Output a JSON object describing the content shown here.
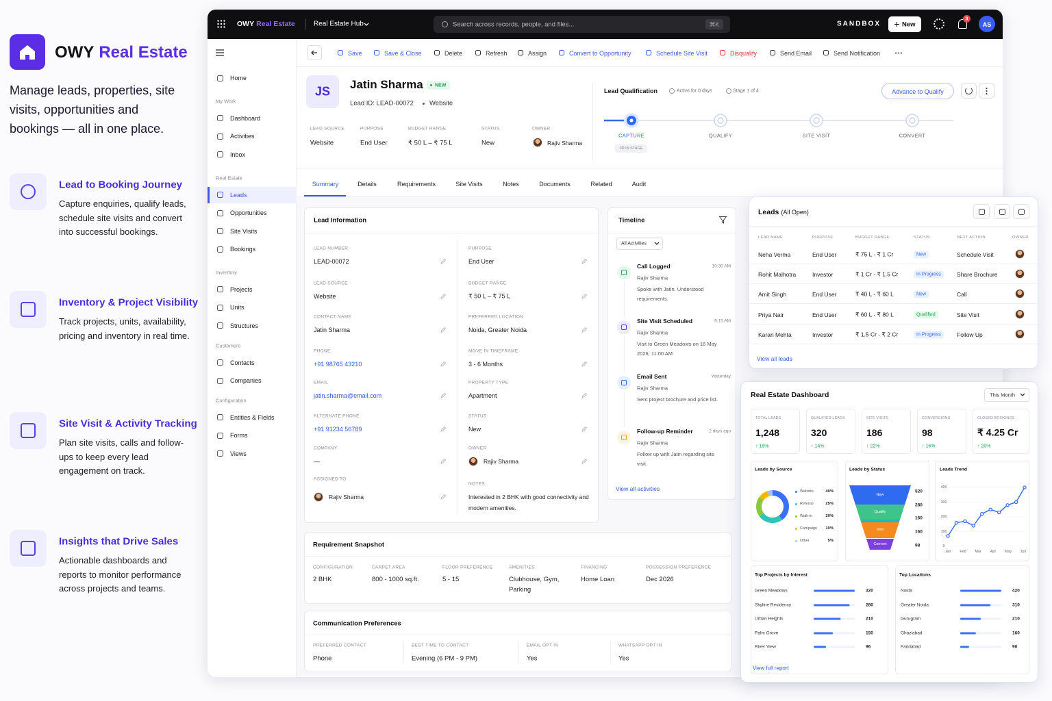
{
  "brand": {
    "name_1": "OWY",
    "name_2": "Real Estate",
    "tagline": "Manage leads, properties, site visits, opportunities and bookings — all in one place."
  },
  "features": [
    {
      "title": "Lead to Booking Journey",
      "text": "Capture enquiries, qualify leads, schedule site visits and convert into successful bookings."
    },
    {
      "title": "Inventory & Project Visibility",
      "text": "Track projects, units, availability, pricing and inventory in real time."
    },
    {
      "title": "Site Visit & Activity Tracking",
      "text": "Plan site visits, calls and follow-ups to keep every lead engagement on track."
    },
    {
      "title": "Insights that Drive Sales",
      "text": "Actionable dashboards and reports to monitor performance across projects and teams."
    }
  ],
  "topbar": {
    "brand_1": "OWY",
    "brand_2": "Real Estate",
    "hub": "Real Estate Hub",
    "search": "Search across records, people, and files...",
    "shortcut": "⌘K",
    "env": "SANDBOX",
    "new": "New",
    "notifications": 3,
    "avatar": "AS"
  },
  "nav": {
    "home": "Home",
    "groups": [
      {
        "label": "My Work",
        "items": [
          "Dashboard",
          "Activities",
          "Inbox"
        ]
      },
      {
        "label": "Real Estate",
        "items": [
          "Leads",
          "Opportunities",
          "Site Visits",
          "Bookings"
        ]
      },
      {
        "label": "Inventory",
        "items": [
          "Projects",
          "Units",
          "Structures"
        ]
      },
      {
        "label": "Customers",
        "items": [
          "Contacts",
          "Companies"
        ]
      },
      {
        "label": "Configuration",
        "items": [
          "Entities & Fields",
          "Forms",
          "Views"
        ]
      }
    ]
  },
  "toolbar": [
    "Save",
    "Save & Close",
    "Delete",
    "Refresh",
    "Assign",
    "Convert to Opportunity",
    "Schedule Site Visit",
    "Disqualify",
    "Send Email",
    "Send Notification"
  ],
  "record": {
    "initials": "JS",
    "name": "Jatin Sharma",
    "badge": "NEW",
    "lead_id": "Lead ID: LEAD-00072",
    "source": "Website",
    "fields": [
      {
        "label": "LEAD SOURCE",
        "value": "Website"
      },
      {
        "label": "PURPOSE",
        "value": "End User"
      },
      {
        "label": "BUDGET RANGE",
        "value": "₹ 50 L – ₹ 75 L"
      },
      {
        "label": "STATUS",
        "value": "New"
      },
      {
        "label": "OWNER",
        "value": "Rajiv Sharma"
      }
    ]
  },
  "qualification": {
    "title": "Lead Qualification",
    "active": "Active for 0 days",
    "stage": "Stage 1 of 4",
    "button": "Advance to Qualify",
    "steps": [
      "CAPTURE",
      "QUALIFY",
      "SITE VISIT",
      "CONVERT"
    ],
    "in_stage": "0D IN STAGE"
  },
  "tabs": [
    "Summary",
    "Details",
    "Requirements",
    "Site Visits",
    "Notes",
    "Documents",
    "Related",
    "Audit"
  ],
  "lead_info": {
    "title": "Lead Information",
    "left": [
      {
        "label": "LEAD NUMBER",
        "value": "LEAD-00072"
      },
      {
        "label": "LEAD SOURCE",
        "value": "Website"
      },
      {
        "label": "CONTACT NAME",
        "value": "Jatin Sharma"
      },
      {
        "label": "PHONE",
        "value": "+91 98765 43210"
      },
      {
        "label": "EMAIL",
        "value": "jatin.sharma@email.com"
      },
      {
        "label": "ALTERNATE PHONE",
        "value": "+91 91234 56789"
      },
      {
        "label": "COMPANY",
        "value": "—"
      },
      {
        "label": "ASSIGNED TO",
        "value": "Rajiv Sharma"
      }
    ],
    "right": [
      {
        "label": "PURPOSE",
        "value": "End User"
      },
      {
        "label": "BUDGET RANGE",
        "value": "₹ 50 L – ₹ 75 L"
      },
      {
        "label": "PREFERRED LOCATION",
        "value": "Noida, Greater Noida"
      },
      {
        "label": "MOVE IN TIMEFRAME",
        "value": "3 - 6 Months"
      },
      {
        "label": "PROPERTY TYPE",
        "value": "Apartment"
      },
      {
        "label": "STATUS",
        "value": "New"
      },
      {
        "label": "OWNER",
        "value": "Rajiv Sharma"
      },
      {
        "label": "NOTES",
        "value": "Interested in 2 BHK with good connectivity and modern amenities."
      }
    ]
  },
  "timeline": {
    "title": "Timeline",
    "filter": "All Activities",
    "items": [
      {
        "title": "Call Logged",
        "time": "10:30 AM",
        "who": "Rajiv Sharma",
        "text": "Spoke with Jatin. Understood requirements."
      },
      {
        "title": "Site Visit Scheduled",
        "time": "9:15 AM",
        "who": "Rajiv Sharma",
        "text": "Visit to Green Meadows on 16 May 2026, 11:00 AM"
      },
      {
        "title": "Email Sent",
        "time": "Yesterday",
        "who": "Rajiv Sharma",
        "text": "Sent project brochure and price list."
      },
      {
        "title": "Follow-up Reminder",
        "time": "2 days ago",
        "who": "Rajiv Sharma",
        "text": "Follow up with Jatin regarding site visit."
      }
    ],
    "link": "View all activities"
  },
  "requirement": {
    "title": "Requirement Snapshot",
    "fields": [
      {
        "label": "CONFIGURATION",
        "value": "2 BHK"
      },
      {
        "label": "CARPET AREA",
        "value": "800 - 1000 sq.ft."
      },
      {
        "label": "FLOOR PREFERENCE",
        "value": "5 - 15"
      },
      {
        "label": "AMENITIES",
        "value": "Clubhouse, Gym, Parking"
      },
      {
        "label": "FINANCING",
        "value": "Home Loan"
      },
      {
        "label": "POSSESSION PREFERENCE",
        "value": "Dec 2026"
      }
    ]
  },
  "communication": {
    "title": "Communication Preferences",
    "fields": [
      {
        "label": "PREFERRED CONTACT",
        "value": "Phone"
      },
      {
        "label": "BEST TIME TO CONTACT",
        "value": "Evening (6 PM - 9 PM)"
      },
      {
        "label": "EMAIL OPT IN",
        "value": "Yes"
      },
      {
        "label": "WHATSAPP OPT IN",
        "value": "Yes"
      }
    ]
  },
  "leads_panel": {
    "title": "Leads",
    "subtitle": "(All Open)",
    "columns": [
      "LEAD NAME",
      "PURPOSE",
      "BUDGET RANGE",
      "STATUS",
      "NEXT ACTION",
      "OWNER"
    ],
    "rows": [
      [
        "Neha Verma",
        "End User",
        "₹ 75 L - ₹ 1 Cr",
        "New",
        "Schedule Visit"
      ],
      [
        "Rohit Malhotra",
        "Investor",
        "₹ 1 Cr - ₹ 1.5 Cr",
        "In Progress",
        "Share Brochure"
      ],
      [
        "Amit Singh",
        "End User",
        "₹ 40 L - ₹ 60 L",
        "New",
        "Call"
      ],
      [
        "Priya Nair",
        "End User",
        "₹ 60 L - ₹ 80 L",
        "Qualified",
        "Site Visit"
      ],
      [
        "Karan Mehta",
        "Investor",
        "₹ 1.5 Cr - ₹ 2 Cr",
        "In Progress",
        "Follow Up"
      ]
    ],
    "link": "View all leads"
  },
  "dashboard": {
    "title": "Real Estate Dashboard",
    "period": "This Month",
    "kpis": [
      {
        "label": "TOTAL LEADS",
        "value": "1,248",
        "change": "↑ 18%"
      },
      {
        "label": "QUALIFIED LEADS",
        "value": "320",
        "change": "↑ 14%"
      },
      {
        "label": "SITE VISITS",
        "value": "186",
        "change": "↑ 22%"
      },
      {
        "label": "CONVERSIONS",
        "value": "98",
        "change": "↑ 16%"
      },
      {
        "label": "CLOSED BOOKINGS",
        "value": "₹ 4.25 Cr",
        "change": "↑ 20%"
      }
    ],
    "by_source": {
      "title": "Leads by Source",
      "items": [
        {
          "name": "Website",
          "value": 40,
          "label": "40%",
          "color": "#3b6ff5"
        },
        {
          "name": "Referral",
          "value": 25,
          "label": "25%",
          "color": "#2ec4b6"
        },
        {
          "name": "Walk-in",
          "value": 20,
          "label": "20%",
          "color": "#8cc63f"
        },
        {
          "name": "Campaign",
          "value": 10,
          "label": "10%",
          "color": "#f7b500"
        },
        {
          "name": "Other",
          "value": 5,
          "label": "5%",
          "color": "#9cc3ff"
        }
      ]
    },
    "by_status": {
      "title": "Leads by Status",
      "categories": [
        "New",
        "Qualify",
        null,
        "Visit",
        "Convert"
      ],
      "values": [
        520,
        280,
        160,
        160,
        98
      ],
      "colors": [
        "#2f6bf0",
        "#3cc48a",
        "#2bb3c0",
        "#f58a1f",
        "#7b3fe4"
      ]
    },
    "trend": {
      "title": "Leads Trend",
      "type": "line",
      "xticks": [
        "Jan",
        "Feb",
        "Mar",
        "Apr",
        "May",
        "Jun"
      ],
      "values": [
        70,
        160,
        170,
        140,
        220,
        250,
        230,
        280,
        300,
        400
      ],
      "ylim": [
        0,
        400
      ],
      "yticks": [
        0,
        100,
        200,
        300,
        400
      ],
      "color": "#2f6bf0"
    },
    "projects": {
      "title": "Top Projects by Interest",
      "names": [
        "Green Meadows",
        "Skyline Residency",
        "Urban Heights",
        "Palm Grove",
        "River View"
      ],
      "values": [
        320,
        280,
        210,
        150,
        96
      ],
      "xlim": [
        0,
        320
      ],
      "color": "#3b6ff5"
    },
    "locations": {
      "title": "Top Locations",
      "names": [
        "Noida",
        "Greater Noida",
        "Gurugram",
        "Ghaziabad",
        "Faridabad"
      ],
      "values": [
        420,
        310,
        210,
        160,
        90
      ],
      "xlim": [
        0,
        420
      ],
      "color": "#3b6ff5"
    },
    "link": "View full report"
  }
}
